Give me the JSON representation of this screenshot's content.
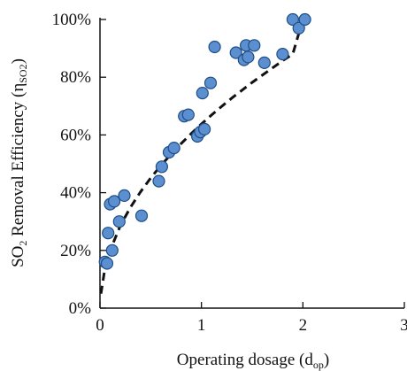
{
  "chart_data": {
    "type": "scatter",
    "title": "",
    "xlabel": {
      "main": "Operating dosage (d",
      "sub": "op",
      "close": ")"
    },
    "ylabel": {
      "pre": "SO",
      "sub1": "2",
      "mid": " Removal Efficiency (η",
      "sub2": "SO2",
      "close": ")"
    },
    "xlim": [
      0,
      3
    ],
    "ylim": [
      0,
      100
    ],
    "x_ticks": [
      0,
      1,
      2,
      3
    ],
    "x_tick_labels": [
      "0",
      "1",
      "2",
      "3"
    ],
    "y_ticks": [
      0,
      20,
      40,
      60,
      80,
      100
    ],
    "y_tick_labels": [
      "0%",
      "20%",
      "40%",
      "60%",
      "80%",
      "100%"
    ],
    "grid": false,
    "legend": "none",
    "marker_color": "#5b8fd0",
    "marker_edge": "#1f4e86",
    "trend_color": "#111111",
    "series": [
      {
        "points": [
          {
            "x": 0.05,
            "y": 16
          },
          {
            "x": 0.07,
            "y": 15.5
          },
          {
            "x": 0.08,
            "y": 26
          },
          {
            "x": 0.1,
            "y": 36
          },
          {
            "x": 0.12,
            "y": 20
          },
          {
            "x": 0.14,
            "y": 37
          },
          {
            "x": 0.19,
            "y": 30
          },
          {
            "x": 0.24,
            "y": 39
          },
          {
            "x": 0.41,
            "y": 32
          },
          {
            "x": 0.58,
            "y": 44
          },
          {
            "x": 0.61,
            "y": 49
          },
          {
            "x": 0.68,
            "y": 54
          },
          {
            "x": 0.73,
            "y": 55.5
          },
          {
            "x": 0.83,
            "y": 66.5
          },
          {
            "x": 0.87,
            "y": 67
          },
          {
            "x": 0.96,
            "y": 59.5
          },
          {
            "x": 0.99,
            "y": 61
          },
          {
            "x": 1.01,
            "y": 74.5
          },
          {
            "x": 1.03,
            "y": 62
          },
          {
            "x": 1.09,
            "y": 78
          },
          {
            "x": 1.13,
            "y": 90.5
          },
          {
            "x": 1.34,
            "y": 88.5
          },
          {
            "x": 1.42,
            "y": 86
          },
          {
            "x": 1.44,
            "y": 91
          },
          {
            "x": 1.46,
            "y": 87
          },
          {
            "x": 1.52,
            "y": 91
          },
          {
            "x": 1.62,
            "y": 85
          },
          {
            "x": 1.8,
            "y": 88
          },
          {
            "x": 1.9,
            "y": 100
          },
          {
            "x": 1.96,
            "y": 97
          },
          {
            "x": 2.02,
            "y": 100
          }
        ]
      }
    ],
    "trendline": {
      "style": "dashed",
      "x": [
        0.01,
        0.05,
        0.1,
        0.2,
        0.3,
        0.4,
        0.5,
        0.6,
        0.7,
        0.8,
        0.9,
        1.0,
        1.1,
        1.2,
        1.3,
        1.4,
        1.5,
        1.6,
        1.7,
        1.8,
        1.9,
        2.0
      ],
      "y": [
        5,
        14,
        20,
        28.5,
        34.9,
        40.3,
        45.1,
        49.4,
        53.3,
        57.0,
        60.5,
        63.8,
        66.9,
        69.9,
        72.8,
        75.5,
        78.2,
        80.7,
        83.2,
        85.7,
        88.0,
        100.5
      ]
    }
  }
}
